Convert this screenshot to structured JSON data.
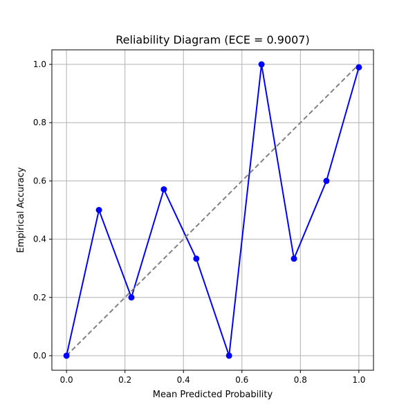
{
  "chart_data": {
    "type": "line",
    "title": "Reliability Diagram (ECE = 0.9007)",
    "xlabel": "Mean Predicted Probability",
    "ylabel": "Empirical Accuracy",
    "xlim": [
      -0.05,
      1.05
    ],
    "ylim": [
      -0.05,
      1.05
    ],
    "xticks": [
      0.0,
      0.2,
      0.4,
      0.6,
      0.8,
      1.0
    ],
    "yticks": [
      0.0,
      0.2,
      0.4,
      0.6,
      0.8,
      1.0
    ],
    "xtick_labels": [
      "0.0",
      "0.2",
      "0.4",
      "0.6",
      "0.8",
      "1.0"
    ],
    "ytick_labels": [
      "0.0",
      "0.2",
      "0.4",
      "0.6",
      "0.8",
      "1.0"
    ],
    "grid": true,
    "series": [
      {
        "style": "line-with-markers",
        "color": "#0000ff",
        "x": [
          0.0,
          0.111,
          0.222,
          0.333,
          0.444,
          0.556,
          0.667,
          0.778,
          0.889,
          1.0
        ],
        "y": [
          0.0,
          0.5,
          0.2,
          0.571,
          0.333,
          0.0,
          1.0,
          0.333,
          0.6,
          0.99
        ]
      },
      {
        "style": "dashed",
        "color": "#808080",
        "x": [
          0.0,
          1.0
        ],
        "y": [
          0.0,
          1.0
        ]
      }
    ]
  }
}
